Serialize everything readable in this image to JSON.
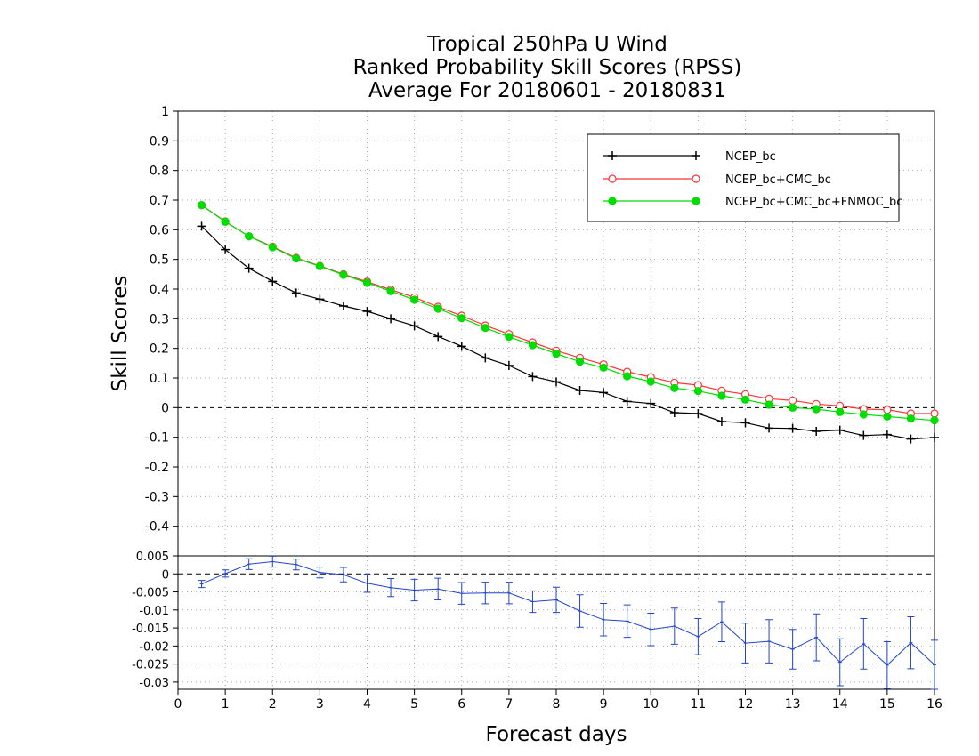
{
  "title_lines": [
    "Tropical 250hPa U Wind",
    "Ranked Probability Skill Scores (RPSS)",
    "Average For 20180601 - 20180831"
  ],
  "chart_data": [
    {
      "type": "line",
      "ylabel": "Skill Scores",
      "xlabel": "Forecast days",
      "xlim": [
        0,
        16
      ],
      "ylim": [
        -0.5,
        1
      ],
      "yticks": [
        "1",
        "0.9",
        "0.8",
        "0.7",
        "0.6",
        "0.5",
        "0.4",
        "0.3",
        "0.2",
        "0.1",
        "0",
        "-0.1",
        "-0.2",
        "-0.3",
        "-0.4"
      ],
      "ytick_values": [
        1,
        0.9,
        0.8,
        0.7,
        0.6,
        0.5,
        0.4,
        0.3,
        0.2,
        0.1,
        0,
        -0.1,
        -0.2,
        -0.3,
        -0.4
      ],
      "grid": true,
      "legend_position": "top-right",
      "x": [
        0.5,
        1,
        1.5,
        2,
        2.5,
        3,
        3.5,
        4,
        4.5,
        5,
        5.5,
        6,
        6.5,
        7,
        7.5,
        8,
        8.5,
        9,
        9.5,
        10,
        10.5,
        11,
        11.5,
        12,
        12.5,
        13,
        13.5,
        14,
        14.5,
        15,
        15.5,
        16
      ],
      "series": [
        {
          "name": "NCEP_bc",
          "color": "#000000",
          "marker": "plus",
          "values": [
            0.612,
            0.533,
            0.47,
            0.426,
            0.387,
            0.366,
            0.343,
            0.325,
            0.3,
            0.276,
            0.24,
            0.207,
            0.168,
            0.142,
            0.105,
            0.087,
            0.058,
            0.051,
            0.021,
            0.014,
            -0.017,
            -0.02,
            -0.047,
            -0.051,
            -0.069,
            -0.07,
            -0.08,
            -0.076,
            -0.094,
            -0.091,
            -0.106,
            -0.101
          ]
        },
        {
          "name": "NCEP_bc+CMC_bc",
          "color": "#ff3333",
          "marker": "open-circle",
          "values": [
            0.683,
            0.628,
            0.578,
            0.543,
            0.505,
            0.478,
            0.45,
            0.425,
            0.398,
            0.372,
            0.34,
            0.31,
            0.277,
            0.248,
            0.22,
            0.192,
            0.168,
            0.146,
            0.121,
            0.103,
            0.084,
            0.076,
            0.057,
            0.045,
            0.03,
            0.024,
            0.012,
            0.006,
            -0.005,
            -0.007,
            -0.02,
            -0.02
          ]
        },
        {
          "name": "NCEP_bc+CMC_bc+FNMOC_bc",
          "color": "#00dd00",
          "marker": "filled-circle",
          "values": [
            0.683,
            0.627,
            0.578,
            0.541,
            0.503,
            0.477,
            0.448,
            0.421,
            0.393,
            0.364,
            0.334,
            0.302,
            0.269,
            0.239,
            0.211,
            0.182,
            0.155,
            0.135,
            0.106,
            0.088,
            0.066,
            0.056,
            0.04,
            0.027,
            0.01,
            0.0,
            -0.005,
            -0.015,
            -0.023,
            -0.03,
            -0.037,
            -0.043
          ]
        }
      ]
    },
    {
      "type": "line",
      "xlabel": "Forecast days",
      "xlim": [
        0,
        16
      ],
      "ylim": [
        -0.032,
        0.005
      ],
      "xticks": [
        "0",
        "1",
        "2",
        "3",
        "4",
        "5",
        "6",
        "7",
        "8",
        "9",
        "10",
        "11",
        "12",
        "13",
        "14",
        "15",
        "16"
      ],
      "yticks": [
        "0.005",
        "0",
        "-0.005",
        "-0.01",
        "-0.015",
        "-0.02",
        "-0.025",
        "-0.03"
      ],
      "ytick_values": [
        0.005,
        0,
        -0.005,
        -0.01,
        -0.015,
        -0.02,
        -0.025,
        -0.03
      ],
      "grid": true,
      "x": [
        0.5,
        1,
        1.5,
        2,
        2.5,
        3,
        3.5,
        4,
        4.5,
        5,
        5.5,
        6,
        6.5,
        7,
        7.5,
        8,
        8.5,
        9,
        9.5,
        10,
        10.5,
        11,
        11.5,
        12,
        12.5,
        13,
        13.5,
        14,
        14.5,
        15,
        15.5,
        16
      ],
      "series": [
        {
          "color": "#2244cc",
          "marker": "error-bar",
          "values": [
            -0.0028,
            0.0001,
            0.0027,
            0.0034,
            0.0026,
            0.0004,
            -0.0002,
            -0.0026,
            -0.0038,
            -0.0045,
            -0.0042,
            -0.0054,
            -0.0053,
            -0.0053,
            -0.0077,
            -0.0072,
            -0.0103,
            -0.0127,
            -0.0131,
            -0.0154,
            -0.0145,
            -0.0174,
            -0.0133,
            -0.0192,
            -0.0187,
            -0.0209,
            -0.0176,
            -0.0245,
            -0.0194,
            -0.0253,
            -0.0191,
            -0.0252
          ],
          "error": [
            0.001,
            0.001,
            0.0015,
            0.0015,
            0.0015,
            0.0015,
            0.002,
            0.0025,
            0.0025,
            0.003,
            0.003,
            0.003,
            0.003,
            0.003,
            0.003,
            0.0035,
            0.0045,
            0.0045,
            0.0045,
            0.0045,
            0.005,
            0.005,
            0.0055,
            0.0055,
            0.006,
            0.0055,
            0.0065,
            0.0065,
            0.007,
            0.0065,
            0.0072,
            0.0068
          ]
        }
      ]
    }
  ]
}
